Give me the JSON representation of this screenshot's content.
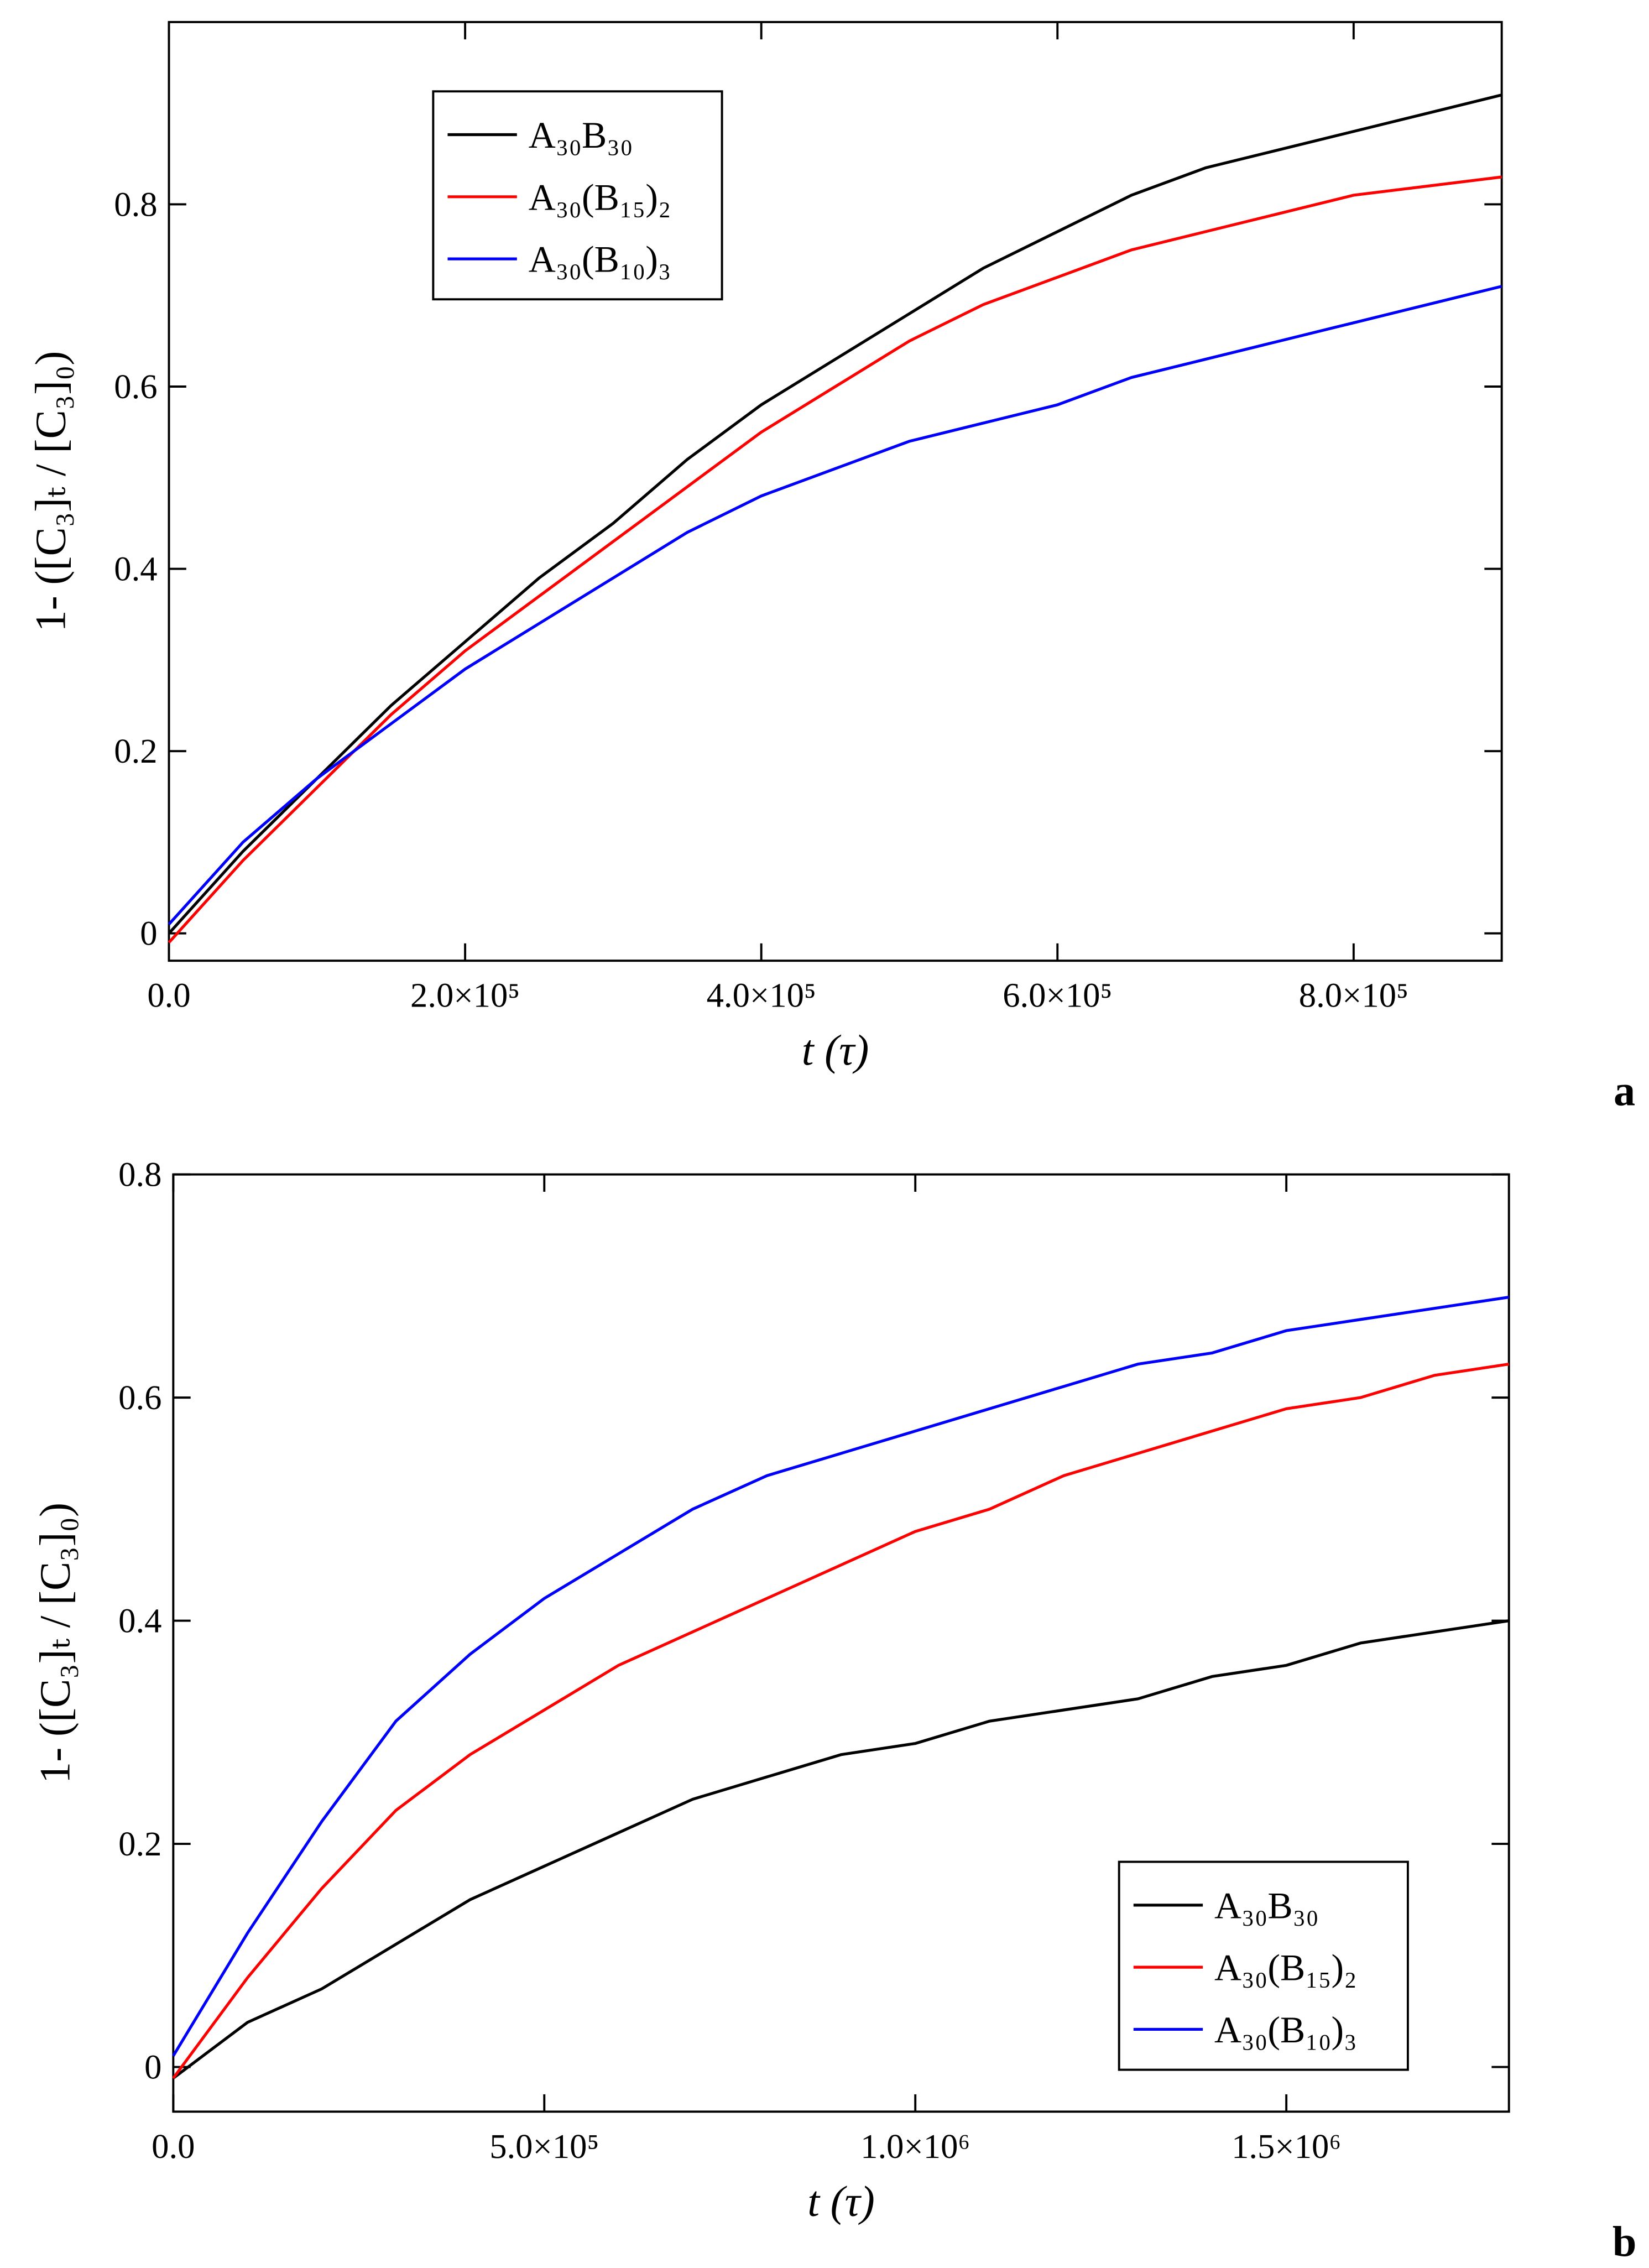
{
  "chart_data": [
    {
      "type": "line",
      "panel_label": "a",
      "x_label": "t (τ)",
      "y_label": "1- ([C₃]ₜ / [C₃]₀)",
      "x": [
        0,
        50000,
        100000,
        150000,
        200000,
        250000,
        300000,
        350000,
        400000,
        450000,
        500000,
        550000,
        600000,
        650000,
        700000,
        750000,
        800000,
        850000,
        900000
      ],
      "series": [
        {
          "name": "A₃₀B₃₀",
          "color": "#000000",
          "values": [
            0.0,
            0.09,
            0.17,
            0.25,
            0.32,
            0.39,
            0.45,
            0.52,
            0.58,
            0.63,
            0.68,
            0.73,
            0.77,
            0.81,
            0.84,
            0.86,
            0.88,
            0.9,
            0.92
          ]
        },
        {
          "name": "A₃₀(B₁₅)₂",
          "color": "#ff0000",
          "values": [
            -0.01,
            0.08,
            0.16,
            0.24,
            0.31,
            0.37,
            0.43,
            0.49,
            0.55,
            0.6,
            0.65,
            0.69,
            0.72,
            0.75,
            0.77,
            0.79,
            0.81,
            0.82,
            0.83
          ]
        },
        {
          "name": "A₃₀(B₁₀)₃",
          "color": "#0000ff",
          "values": [
            0.01,
            0.1,
            0.17,
            0.23,
            0.29,
            0.34,
            0.39,
            0.44,
            0.48,
            0.51,
            0.54,
            0.56,
            0.58,
            0.61,
            0.63,
            0.65,
            0.67,
            0.69,
            0.71
          ]
        }
      ],
      "xlim": [
        0,
        900000
      ],
      "xticks": [
        {
          "value": 0,
          "label": "0.0"
        },
        {
          "value": 200000,
          "label": "2.0×10⁵"
        },
        {
          "value": 400000,
          "label": "4.0×10⁵"
        },
        {
          "value": 600000,
          "label": "6.0×10⁵"
        },
        {
          "value": 800000,
          "label": "8.0×10⁵"
        }
      ],
      "ylim": [
        -0.03,
        1.0
      ],
      "yticks": [
        0,
        0.2,
        0.4,
        0.6,
        0.8
      ],
      "legend": "upper left",
      "grid": false
    },
    {
      "type": "line",
      "panel_label": "b",
      "x_label": "t (τ)",
      "y_label": "1- ([C₃]ₜ / [C₃]₀)",
      "x": [
        0,
        100000,
        200000,
        300000,
        400000,
        500000,
        600000,
        700000,
        800000,
        900000,
        1000000,
        1100000,
        1200000,
        1300000,
        1400000,
        1500000,
        1600000,
        1700000,
        1800000
      ],
      "series": [
        {
          "name": "A₃₀B₃₀",
          "color": "#000000",
          "values": [
            -0.01,
            0.04,
            0.07,
            0.11,
            0.15,
            0.18,
            0.21,
            0.24,
            0.26,
            0.28,
            0.29,
            0.31,
            0.32,
            0.33,
            0.35,
            0.36,
            0.38,
            0.39,
            0.4
          ]
        },
        {
          "name": "A₃₀(B₁₅)₂",
          "color": "#ff0000",
          "values": [
            -0.01,
            0.08,
            0.16,
            0.23,
            0.28,
            0.32,
            0.36,
            0.39,
            0.42,
            0.45,
            0.48,
            0.5,
            0.53,
            0.55,
            0.57,
            0.59,
            0.6,
            0.62,
            0.63
          ]
        },
        {
          "name": "A₃₀(B₁₀)₃",
          "color": "#0000ff",
          "values": [
            0.01,
            0.12,
            0.22,
            0.31,
            0.37,
            0.42,
            0.46,
            0.5,
            0.53,
            0.55,
            0.57,
            0.59,
            0.61,
            0.63,
            0.64,
            0.66,
            0.67,
            0.68,
            0.69
          ]
        }
      ],
      "xlim": [
        0,
        1800000
      ],
      "xticks": [
        {
          "value": 0,
          "label": "0.0"
        },
        {
          "value": 500000,
          "label": "5.0×10⁵"
        },
        {
          "value": 1000000,
          "label": "1.0×10⁶"
        },
        {
          "value": 1500000,
          "label": "1.5×10⁶"
        }
      ],
      "ylim": [
        -0.04,
        0.8
      ],
      "yticks": [
        0,
        0.2,
        0.4,
        0.6,
        0.8
      ],
      "legend": "lower right",
      "grid": false
    }
  ]
}
